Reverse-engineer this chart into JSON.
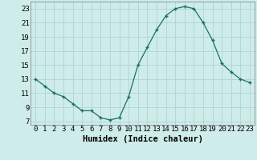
{
  "x": [
    0,
    1,
    2,
    3,
    4,
    5,
    6,
    7,
    8,
    9,
    10,
    11,
    12,
    13,
    14,
    15,
    16,
    17,
    18,
    19,
    20,
    21,
    22,
    23
  ],
  "y": [
    13,
    12,
    11,
    10.5,
    9.5,
    8.5,
    8.5,
    7.5,
    7.2,
    7.5,
    10.5,
    15,
    17.5,
    20,
    22,
    23,
    23.3,
    23,
    21,
    18.5,
    15.2,
    14,
    13,
    12.5
  ],
  "line_color": "#1a7060",
  "marker": "+",
  "marker_size": 3,
  "marker_lw": 1.0,
  "line_width": 0.9,
  "bg_color": "#ceecea",
  "grid_color": "#b0d4d0",
  "xlabel": "Humidex (Indice chaleur)",
  "xlim": [
    -0.5,
    23.5
  ],
  "ylim": [
    6.5,
    24
  ],
  "xticks": [
    0,
    1,
    2,
    3,
    4,
    5,
    6,
    7,
    8,
    9,
    10,
    11,
    12,
    13,
    14,
    15,
    16,
    17,
    18,
    19,
    20,
    21,
    22,
    23
  ],
  "yticks": [
    7,
    9,
    11,
    13,
    15,
    17,
    19,
    21,
    23
  ],
  "xlabel_fontsize": 7.5,
  "tick_fontsize": 6.5
}
